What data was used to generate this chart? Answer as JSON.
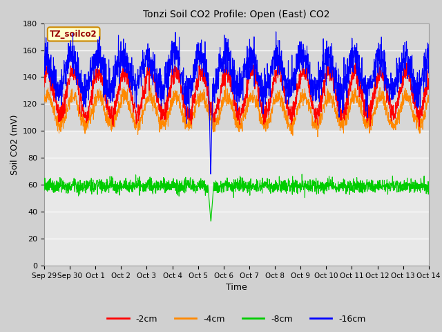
{
  "title": "Tonzi Soil CO2 Profile: Open (East) CO2",
  "xlabel": "Time",
  "ylabel": "Soil CO2 (mV)",
  "ylim": [
    0,
    180
  ],
  "yticks": [
    0,
    20,
    40,
    60,
    80,
    100,
    120,
    140,
    160,
    180
  ],
  "n_points": 2000,
  "colors": {
    "2cm": "#ff0000",
    "4cm": "#ff8800",
    "8cm": "#00cc00",
    "16cm": "#0000ff"
  },
  "series_labels": [
    "-2cm",
    "-4cm",
    "-8cm",
    "-16cm"
  ],
  "fig_bg_color": "#d0d0d0",
  "plot_bg_color": "#e8e8e8",
  "plot_bg_upper_color": "#d8d8d8",
  "annotation_label": "TZ_soilco2",
  "annotation_bg": "#ffffcc",
  "annotation_border": "#cc8800",
  "tick_labels": [
    "Sep 29",
    "Sep 30",
    "Oct 1",
    "Oct 2",
    "Oct 3",
    "Oct 4",
    "Oct 5",
    "Oct 6",
    "Oct 7",
    "Oct 8",
    "Oct 9",
    "Oct 10",
    "Oct 11",
    "Oct 12",
    "Oct 13",
    "Oct 14"
  ],
  "n_days": 15
}
